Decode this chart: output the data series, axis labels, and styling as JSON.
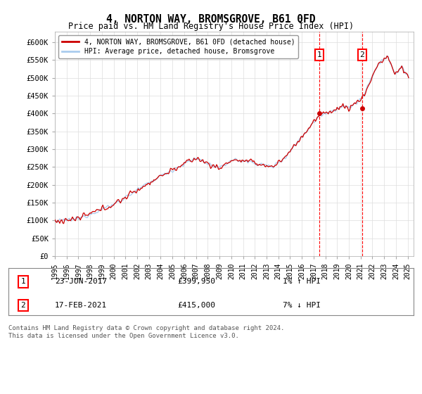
{
  "title": "4, NORTON WAY, BROMSGROVE, B61 0FD",
  "subtitle": "Price paid vs. HM Land Registry's House Price Index (HPI)",
  "ylabel_ticks": [
    "£0",
    "£50K",
    "£100K",
    "£150K",
    "£200K",
    "£250K",
    "£300K",
    "£350K",
    "£400K",
    "£450K",
    "£500K",
    "£550K",
    "£600K"
  ],
  "ylim": [
    0,
    630000
  ],
  "yticks": [
    0,
    50000,
    100000,
    150000,
    200000,
    250000,
    300000,
    350000,
    400000,
    450000,
    500000,
    550000,
    600000
  ],
  "hpi_color": "#aaccee",
  "price_color": "#cc0000",
  "legend_line1": "4, NORTON WAY, BROMSGROVE, B61 0FD (detached house)",
  "legend_line2": "HPI: Average price, detached house, Bromsgrove",
  "annotation1_date": "23-JUN-2017",
  "annotation1_price": "£399,950",
  "annotation1_hpi": "1% ↑ HPI",
  "annotation2_date": "17-FEB-2021",
  "annotation2_price": "£415,000",
  "annotation2_hpi": "7% ↓ HPI",
  "footnote1": "Contains HM Land Registry data © Crown copyright and database right 2024.",
  "footnote2": "This data is licensed under the Open Government Licence v3.0.",
  "start_year": 1995,
  "end_year": 2025,
  "t1": 2017.47,
  "t2": 2021.12,
  "price1": 399950,
  "price2": 415000
}
